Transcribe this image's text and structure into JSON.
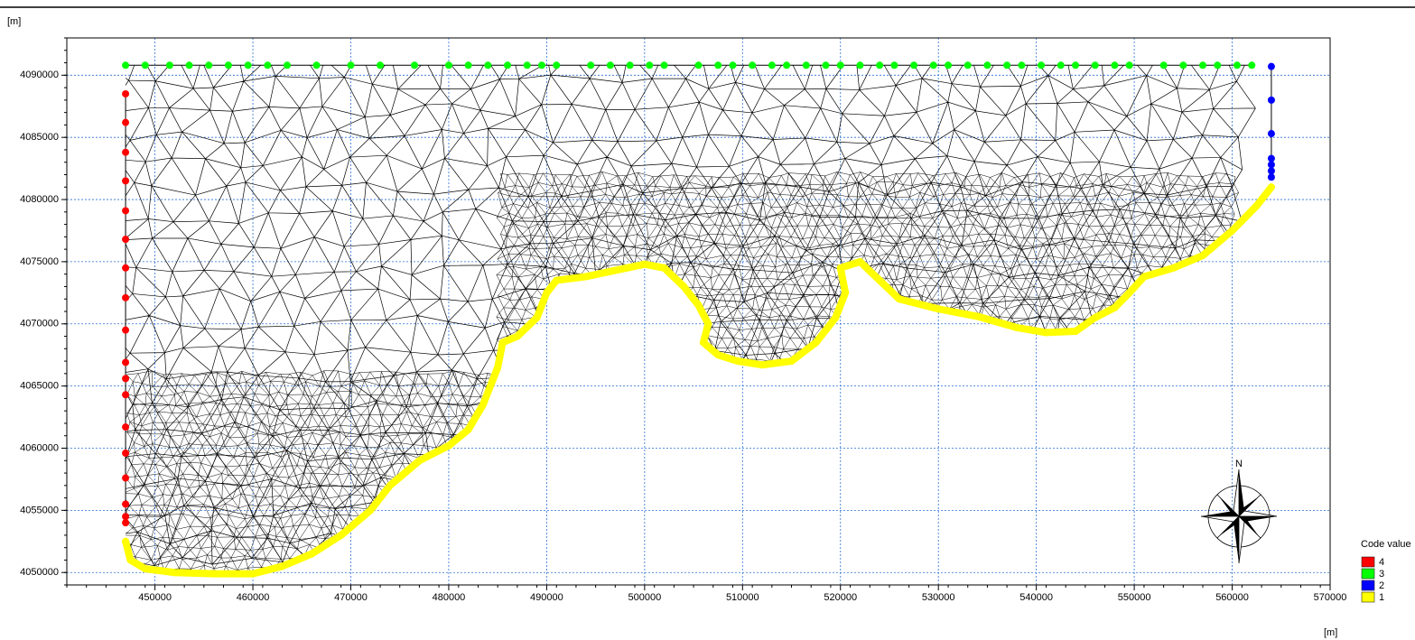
{
  "chart_data": {
    "type": "scatter",
    "y_label": "[m]",
    "x_label": "[m]",
    "legend_title": "Code value",
    "north_label": "N",
    "xlim": [
      441000,
      570000
    ],
    "ylim": [
      4049000,
      4093000
    ],
    "xticks": [
      450000,
      460000,
      470000,
      480000,
      490000,
      500000,
      510000,
      520000,
      530000,
      540000,
      550000,
      560000,
      570000
    ],
    "yticks": [
      4050000,
      4055000,
      4060000,
      4065000,
      4070000,
      4075000,
      4080000,
      4085000,
      4090000
    ],
    "grid": true,
    "series": [
      {
        "name": "4",
        "color": "#ff0000",
        "x": [
          447000,
          447000,
          447000,
          447000,
          447000,
          447000,
          447000,
          447000,
          447000,
          447000,
          447000,
          447000,
          447000,
          447000,
          447000,
          447000,
          447000,
          447000
        ],
        "values": [
          4088500,
          4086200,
          4083800,
          4081500,
          4079100,
          4076800,
          4074500,
          4072100,
          4069500,
          4066900,
          4065600,
          4064300,
          4061700,
          4059600,
          4057600,
          4055500,
          4054500,
          4054000
        ]
      },
      {
        "name": "3",
        "color": "#00ff00",
        "x": [
          447000,
          449000,
          451500,
          453500,
          455500,
          457500,
          459500,
          461500,
          463500,
          466500,
          470000,
          473000,
          476500,
          480000,
          482000,
          484000,
          486000,
          488000,
          489500,
          491000,
          494500,
          496500,
          498500,
          500500,
          502000,
          505500,
          507500,
          509000,
          511000,
          513000,
          514500,
          516500,
          518500,
          520000,
          522000,
          524000,
          525500,
          527500,
          529500,
          531000,
          533000,
          535000,
          537000,
          538500,
          540500,
          542500,
          544000,
          546000,
          548000,
          549500,
          553000,
          555000,
          557000,
          558500,
          560500,
          562000
        ],
        "values": [
          4090800,
          4090800,
          4090800,
          4090800,
          4090800,
          4090800,
          4090800,
          4090800,
          4090800,
          4090800,
          4090800,
          4090800,
          4090800,
          4090800,
          4090800,
          4090800,
          4090800,
          4090800,
          4090800,
          4090800,
          4090800,
          4090800,
          4090800,
          4090800,
          4090800,
          4090800,
          4090800,
          4090800,
          4090800,
          4090800,
          4090800,
          4090800,
          4090800,
          4090800,
          4090800,
          4090800,
          4090800,
          4090800,
          4090800,
          4090800,
          4090800,
          4090800,
          4090800,
          4090800,
          4090800,
          4090800,
          4090800,
          4090800,
          4090800,
          4090800,
          4090800,
          4090800,
          4090800,
          4090800,
          4090800,
          4090800
        ]
      },
      {
        "name": "2",
        "color": "#0000ff",
        "x": [
          564000,
          564000,
          564000,
          564000,
          564000,
          564000,
          564000
        ],
        "values": [
          4090700,
          4088000,
          4085300,
          4083300,
          4082800,
          4082300,
          4081800
        ]
      },
      {
        "name": "1",
        "color": "#ffff00",
        "x": [
          447000,
          447500,
          449000,
          452000,
          456000,
          460000,
          463000,
          466000,
          469000,
          472000,
          474000,
          477000,
          480000,
          482000,
          483500,
          485000,
          485500,
          487000,
          489000,
          490000,
          491000,
          494000,
          497000,
          500000,
          502000,
          504000,
          505500,
          506500,
          506000,
          507500,
          509500,
          512000,
          515000,
          517500,
          519500,
          520500,
          520000,
          522000,
          524000,
          526000,
          530000,
          534000,
          538000,
          541000,
          544000,
          546000,
          548000,
          549500,
          551000,
          554000,
          557000,
          560000,
          562500,
          564000
        ],
        "values": [
          4052500,
          4051000,
          4050300,
          4050000,
          4049900,
          4049900,
          4050500,
          4051500,
          4053000,
          4055000,
          4057000,
          4059000,
          4060200,
          4061500,
          4063500,
          4066500,
          4068500,
          4069000,
          4070500,
          4072500,
          4073500,
          4073800,
          4074300,
          4074800,
          4074500,
          4073000,
          4071500,
          4070000,
          4068500,
          4067500,
          4067000,
          4066700,
          4067000,
          4068500,
          4070500,
          4072500,
          4074500,
          4075000,
          4073500,
          4072000,
          4071200,
          4070600,
          4069700,
          4069300,
          4069400,
          4070500,
          4071300,
          4072500,
          4073800,
          4074500,
          4075500,
          4077500,
          4079500,
          4081000
        ]
      }
    ]
  }
}
